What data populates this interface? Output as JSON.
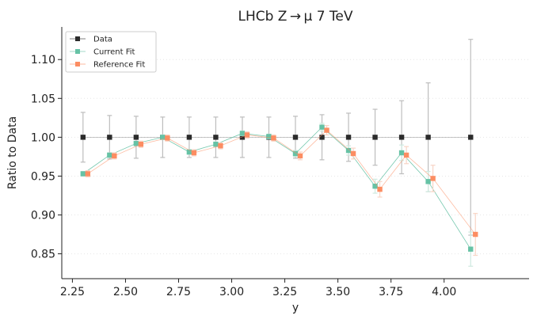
{
  "chart_data": {
    "type": "scatter",
    "title": "LHCb Z → μ 7 TeV",
    "xlabel": "y",
    "ylabel": "Ratio to Data",
    "xlim": [
      2.2,
      4.4
    ],
    "ylim": [
      0.818,
      1.142
    ],
    "xticks": [
      "2.25",
      "2.50",
      "2.75",
      "3.00",
      "3.25",
      "3.50",
      "3.75",
      "4.00"
    ],
    "xtick_values": [
      2.25,
      2.5,
      2.75,
      3.0,
      3.25,
      3.5,
      3.75,
      4.0
    ],
    "yticks": [
      "0.85",
      "0.90",
      "0.95",
      "1.00",
      "1.05",
      "1.10"
    ],
    "ytick_values": [
      0.85,
      0.9,
      0.95,
      1.0,
      1.05,
      1.1
    ],
    "grid": "horizontal-dotted",
    "legend": "top-left",
    "series": [
      {
        "name": "Data",
        "color": "#2b2b2b",
        "marker": "square",
        "x": [
          2.3,
          2.425,
          2.55,
          2.675,
          2.8,
          2.925,
          3.05,
          3.175,
          3.3,
          3.425,
          3.55,
          3.675,
          3.8,
          3.925,
          4.125
        ],
        "y": [
          1.0,
          1.0,
          1.0,
          1.0,
          1.0,
          1.0,
          1.0,
          1.0,
          1.0,
          1.0,
          1.0,
          1.0,
          1.0,
          1.0,
          1.0
        ],
        "err": [
          0.032,
          0.028,
          0.027,
          0.026,
          0.026,
          0.026,
          0.026,
          0.026,
          0.027,
          0.029,
          0.031,
          0.036,
          0.047,
          0.07,
          0.126
        ]
      },
      {
        "name": "Current Fit",
        "color": "#66c2a5",
        "marker": "square",
        "x": [
          2.3,
          2.425,
          2.55,
          2.675,
          2.8,
          2.925,
          3.05,
          3.175,
          3.3,
          3.425,
          3.55,
          3.675,
          3.8,
          3.925,
          4.125
        ],
        "y": [
          0.953,
          0.977,
          0.992,
          1.0,
          0.981,
          0.991,
          1.005,
          1.001,
          0.979,
          1.013,
          0.983,
          0.937,
          0.98,
          0.943,
          0.856
        ],
        "err": [
          0.003,
          0.003,
          0.003,
          0.003,
          0.003,
          0.003,
          0.003,
          0.003,
          0.004,
          0.005,
          0.006,
          0.009,
          0.01,
          0.013,
          0.022
        ]
      },
      {
        "name": "Reference Fit",
        "color": "#fc8d62",
        "marker": "square",
        "x": [
          2.3,
          2.425,
          2.55,
          2.675,
          2.8,
          2.925,
          3.05,
          3.175,
          3.3,
          3.425,
          3.55,
          3.675,
          3.8,
          3.925,
          4.125
        ],
        "y": [
          0.953,
          0.976,
          0.991,
          0.999,
          0.98,
          0.989,
          1.003,
          0.999,
          0.976,
          1.009,
          0.979,
          0.933,
          0.977,
          0.947,
          0.875
        ],
        "err": [
          0.004,
          0.004,
          0.004,
          0.004,
          0.004,
          0.004,
          0.004,
          0.004,
          0.005,
          0.006,
          0.007,
          0.01,
          0.011,
          0.017,
          0.027
        ]
      }
    ]
  }
}
